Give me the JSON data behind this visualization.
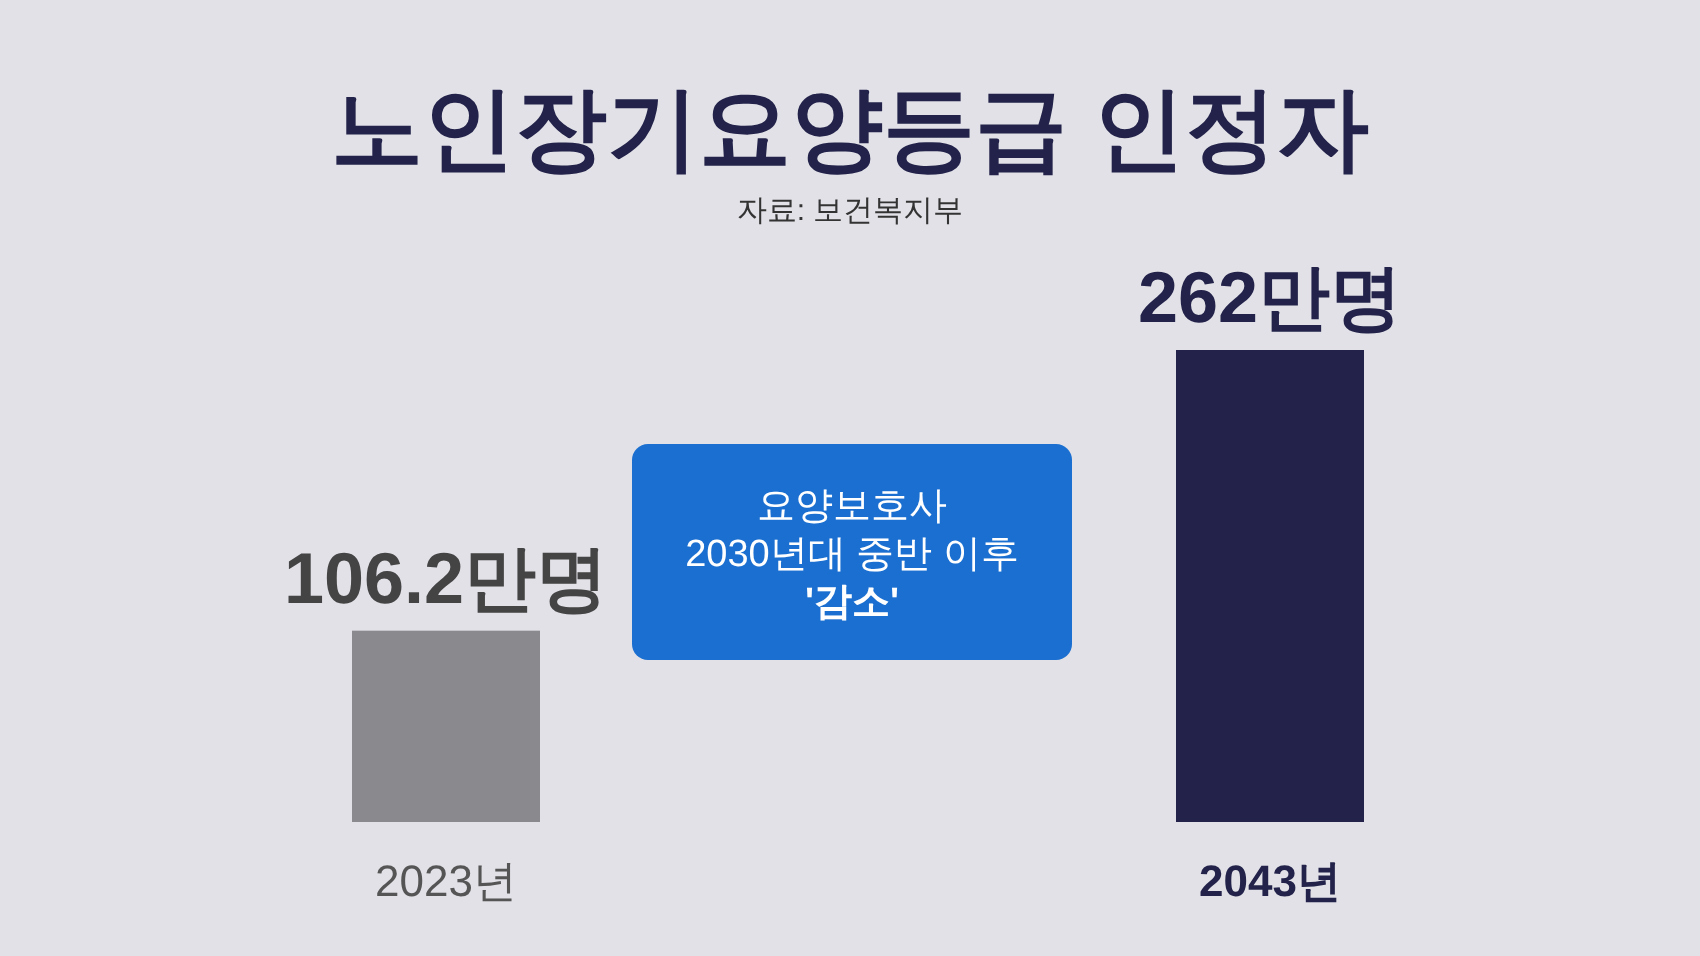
{
  "chart_data": {
    "type": "bar",
    "title": "노인장기요양등급 인정자",
    "categories": [
      "2023년",
      "2043년"
    ],
    "values": [
      106.2,
      262
    ],
    "colors": [
      "#8a898e",
      "#22224a"
    ],
    "value_labels": [
      "106.2만명",
      "262만명"
    ],
    "annotations": [
      "자료: 보건복지부",
      "요양보호사\n2030년대 중반 이후\n'감소'"
    ]
  }
}
